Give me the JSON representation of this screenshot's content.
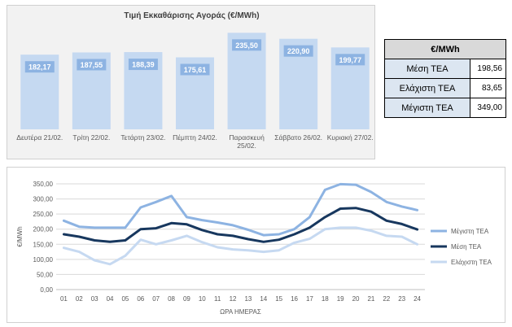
{
  "chart_data": [
    {
      "type": "bar",
      "title": "Τιμή Εκκαθάρισης Αγοράς (€/MWh)",
      "categories": [
        "Δευτέρα 21/02.",
        "Τρίτη 22/02.",
        "Τετάρτη 23/02.",
        "Πέμπτη 24/02.",
        "Παρασκευή 25/02.",
        "Σάββατο 26/02.",
        "Κυριακή 27/02."
      ],
      "category_lines": [
        [
          "Δευτέρα 21/02."
        ],
        [
          "Τρίτη 22/02."
        ],
        [
          "Τετάρτη 23/02."
        ],
        [
          "Πέμπτη 24/02."
        ],
        [
          "Παρασκευή",
          "25/02."
        ],
        [
          "Σάββατο 26/02."
        ],
        [
          "Κυριακή 27/02."
        ]
      ],
      "values": [
        182.17,
        187.55,
        188.39,
        175.61,
        235.5,
        220.9,
        199.77
      ],
      "value_labels": [
        "182,17",
        "187,55",
        "188,39",
        "175,61",
        "235,50",
        "220,90",
        "199,77"
      ],
      "xlabel": "",
      "ylabel": "",
      "ylim": [
        0,
        250
      ],
      "grid": false,
      "colors": {
        "bar": "#c5d9f1",
        "label_box": "#8db3e2",
        "label_text": "#ffffff",
        "panel": "#f2f2f2"
      }
    },
    {
      "type": "line",
      "title": "",
      "xlabel": "ΩΡΑ ΗΜΕΡΑΣ",
      "ylabel": "€/MWh",
      "x": [
        "01",
        "02",
        "03",
        "04",
        "05",
        "06",
        "07",
        "08",
        "09",
        "10",
        "11",
        "12",
        "13",
        "14",
        "15",
        "16",
        "17",
        "18",
        "19",
        "20",
        "21",
        "22",
        "23",
        "24"
      ],
      "yticks": [
        "0,00",
        "50,00",
        "100,00",
        "150,00",
        "200,00",
        "250,00",
        "300,00",
        "350,00"
      ],
      "ylim": [
        0,
        350
      ],
      "grid": true,
      "legend_position": "right",
      "series": [
        {
          "name": "Μέγιστη ΤΕΑ",
          "color": "#8db3e2",
          "values": [
            228,
            208,
            205,
            205,
            205,
            272,
            290,
            310,
            240,
            230,
            222,
            213,
            198,
            180,
            183,
            200,
            240,
            330,
            349,
            347,
            323,
            290,
            275,
            263
          ]
        },
        {
          "name": "Μέση ΤΕΑ",
          "color": "#17375e",
          "values": [
            183,
            175,
            163,
            158,
            163,
            200,
            203,
            220,
            216,
            197,
            183,
            178,
            167,
            158,
            165,
            183,
            205,
            240,
            268,
            270,
            258,
            228,
            217,
            199
          ]
        },
        {
          "name": "Ελάχιστη ΤΕΑ",
          "color": "#c6d9f1",
          "values": [
            138,
            125,
            97,
            84,
            112,
            165,
            150,
            163,
            178,
            157,
            140,
            133,
            130,
            125,
            130,
            155,
            168,
            200,
            205,
            205,
            195,
            178,
            175,
            150
          ]
        }
      ]
    }
  ],
  "table": {
    "header": "€/MWh",
    "rows": [
      {
        "label": "Μέση ΤΕΑ",
        "value": "198,56"
      },
      {
        "label": "Ελάχιστη ΤΕΑ",
        "value": "83,65"
      },
      {
        "label": "Μέγιστη ΤΕΑ",
        "value": "349,00"
      }
    ]
  }
}
